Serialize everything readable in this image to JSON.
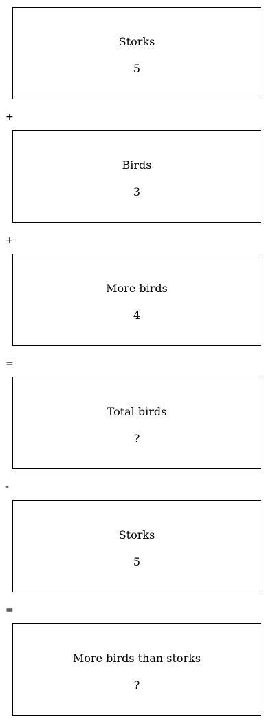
{
  "boxes": [
    {
      "label": "Storks",
      "value": "5"
    },
    {
      "label": "Birds",
      "value": "3"
    },
    {
      "label": "More birds",
      "value": "4"
    },
    {
      "label": "Total birds",
      "value": "?"
    },
    {
      "label": "Storks",
      "value": "5"
    },
    {
      "label": "More birds than storks",
      "value": "?"
    }
  ],
  "operators": [
    "+",
    "+",
    "=",
    "-",
    "="
  ]
}
